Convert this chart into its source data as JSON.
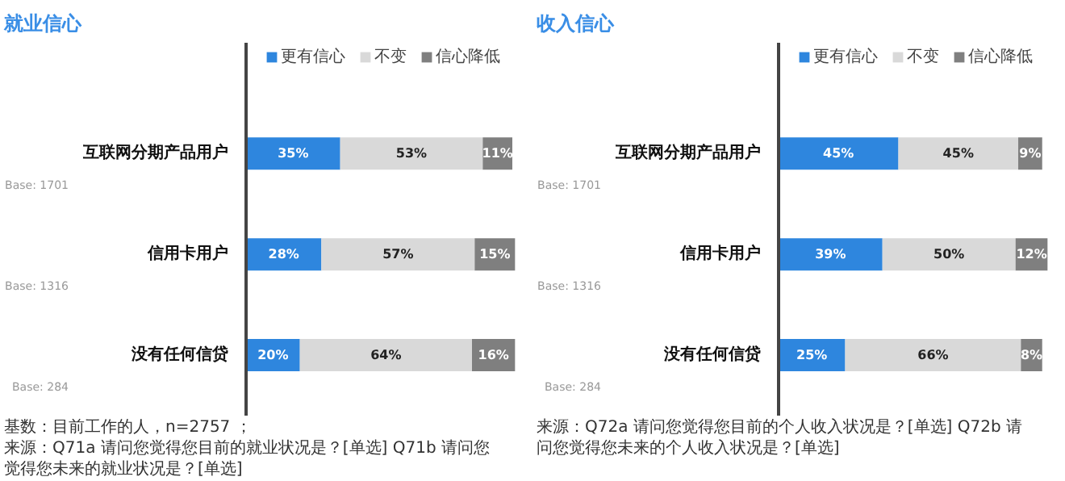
{
  "chart_data": [
    {
      "type": "bar",
      "orientation": "horizontal",
      "stacked": true,
      "title": "就业信心",
      "legend": "top",
      "categories": [
        "互联网分期产品用户",
        "信用卡用户",
        "没有任何信贷"
      ],
      "series": [
        {
          "name": "更有信心",
          "color": "#2e86de",
          "values": [
            35,
            28,
            20
          ],
          "value_labels": [
            "35%",
            "28%",
            "20%"
          ]
        },
        {
          "name": "不变",
          "color": "#d9d9d9",
          "values": [
            53,
            57,
            64
          ],
          "value_labels": [
            "53%",
            "57%",
            "64%"
          ]
        },
        {
          "name": "信心降低",
          "color": "#7f7f7f",
          "values": [
            11,
            15,
            16
          ],
          "value_labels": [
            "11%",
            "15%",
            "16%"
          ]
        }
      ],
      "annotations": [
        "Base: 1701",
        "Base: 1316",
        "Base: 284",
        "基数：目前工作的人，n=2757 ；",
        "来源：Q71a 请问您觉得您目前的就业状况是？[单选] Q71b 请问您觉得您未来的就业状况是？[单选]"
      ]
    },
    {
      "type": "bar",
      "orientation": "horizontal",
      "stacked": true,
      "title": "收入信心",
      "legend": "top",
      "categories": [
        "互联网分期产品用户",
        "信用卡用户",
        "没有任何信贷"
      ],
      "series": [
        {
          "name": "更有信心",
          "color": "#2e86de",
          "values": [
            45,
            39,
            25
          ],
          "value_labels": [
            "45%",
            "39%",
            "25%"
          ]
        },
        {
          "name": "不变",
          "color": "#d9d9d9",
          "values": [
            45,
            50,
            66
          ],
          "value_labels": [
            "45%",
            "50%",
            "66%"
          ]
        },
        {
          "name": "信心降低",
          "color": "#7f7f7f",
          "values": [
            9,
            12,
            8
          ],
          "value_labels": [
            "9%",
            "12%",
            "8%"
          ]
        }
      ],
      "annotations": [
        "Base: 1701",
        "Base: 1316",
        "Base: 284",
        "来源：Q72a 请问您觉得您目前的个人收入状况是？[单选] Q72b 请问您觉得您未来的个人收入状况是？[单选]"
      ]
    }
  ]
}
